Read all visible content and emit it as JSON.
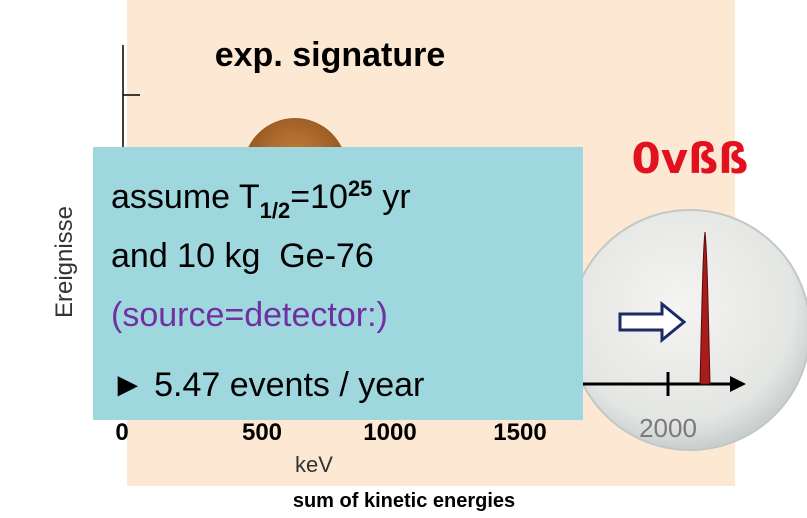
{
  "title": "exp. signature",
  "label": "0vßß",
  "y_axis_label": "Ereignisse",
  "x_axis": {
    "ticks": [
      "0",
      "500",
      "1000",
      "1500"
    ],
    "unit": "keV",
    "title": "sum of kinetic energies"
  },
  "inset": {
    "tick": "2000"
  },
  "note": {
    "line1": {
      "prefix": "assume T",
      "subscript": "1/2",
      "middle": "=10",
      "superscript": "25",
      "suffix": "yr"
    },
    "line2": "and 10 kg  Ge-76",
    "line3": "(source=detector:)",
    "line4": "► 5.47 events / year"
  }
}
